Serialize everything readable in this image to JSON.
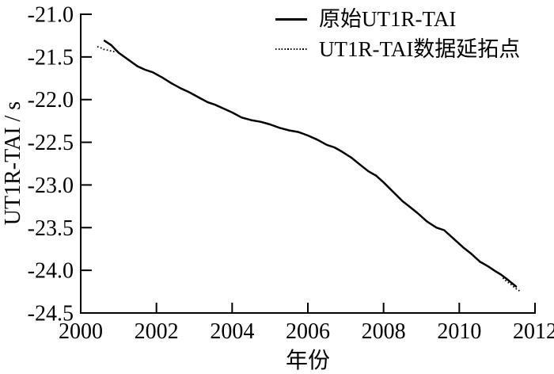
{
  "figure": {
    "background": "#ffffff",
    "line_color": "#000000",
    "text_color": "#000000"
  },
  "chart_data": {
    "type": "line",
    "title": "",
    "xlabel": "年份",
    "ylabel": "UT1R-TAI / s",
    "xlim": [
      2000,
      2012
    ],
    "ylim": [
      -24.5,
      -21.0
    ],
    "x_tick_values": [
      2000,
      2002,
      2004,
      2006,
      2008,
      2010,
      2012
    ],
    "x_tick_labels": [
      "2000",
      "2002",
      "2004",
      "2006",
      "2008",
      "2010",
      "2012"
    ],
    "y_tick_values": [
      -21.0,
      -21.5,
      -22.0,
      -22.5,
      -23.0,
      -23.5,
      -24.0,
      -24.5
    ],
    "y_tick_labels": [
      "-21.0",
      "-21.5",
      "-22.0",
      "-22.5",
      "-23.0",
      "-23.5",
      "-24.0",
      "-24.5"
    ],
    "grid": false,
    "legend_position": "top-right-inside",
    "series": [
      {
        "name": "原始UT1R-TAI",
        "line_style": "solid",
        "color": "#000000",
        "segments": [
          [
            [
              2000.63,
              -21.31
            ],
            [
              2000.8,
              -21.36
            ],
            [
              2001.0,
              -21.45
            ],
            [
              2001.25,
              -21.53
            ],
            [
              2001.5,
              -21.61
            ],
            [
              2001.7,
              -21.65
            ],
            [
              2001.9,
              -21.68
            ],
            [
              2002.15,
              -21.74
            ],
            [
              2002.4,
              -21.81
            ],
            [
              2002.65,
              -21.87
            ],
            [
              2002.85,
              -21.91
            ],
            [
              2003.1,
              -21.97
            ],
            [
              2003.35,
              -22.03
            ],
            [
              2003.55,
              -22.06
            ],
            [
              2003.8,
              -22.11
            ],
            [
              2004.0,
              -22.15
            ],
            [
              2004.25,
              -22.21
            ],
            [
              2004.5,
              -22.24
            ],
            [
              2004.75,
              -22.26
            ],
            [
              2005.0,
              -22.29
            ],
            [
              2005.25,
              -22.33
            ],
            [
              2005.5,
              -22.36
            ],
            [
              2005.75,
              -22.38
            ],
            [
              2006.0,
              -22.42
            ],
            [
              2006.25,
              -22.47
            ],
            [
              2006.5,
              -22.53
            ],
            [
              2006.7,
              -22.56
            ],
            [
              2006.9,
              -22.61
            ],
            [
              2007.15,
              -22.68
            ],
            [
              2007.4,
              -22.77
            ],
            [
              2007.6,
              -22.84
            ],
            [
              2007.8,
              -22.89
            ],
            [
              2008.0,
              -22.97
            ],
            [
              2008.25,
              -23.08
            ],
            [
              2008.5,
              -23.19
            ],
            [
              2008.7,
              -23.26
            ],
            [
              2008.9,
              -23.33
            ],
            [
              2009.15,
              -23.43
            ],
            [
              2009.4,
              -23.5
            ],
            [
              2009.6,
              -23.53
            ],
            [
              2009.85,
              -23.63
            ],
            [
              2010.1,
              -23.73
            ],
            [
              2010.3,
              -23.8
            ],
            [
              2010.55,
              -23.9
            ],
            [
              2010.75,
              -23.95
            ],
            [
              2010.95,
              -24.01
            ],
            [
              2011.1,
              -24.05
            ],
            [
              2011.25,
              -24.1
            ],
            [
              2011.5,
              -24.19
            ]
          ]
        ]
      },
      {
        "name": "UT1R-TAI数据延拓点",
        "line_style": "dotted",
        "color": "#000000",
        "segments": [
          [
            [
              2000.44,
              -21.38
            ],
            [
              2000.52,
              -21.39
            ],
            [
              2000.6,
              -21.41
            ],
            [
              2000.7,
              -21.42
            ],
            [
              2000.8,
              -21.43
            ],
            [
              2000.9,
              -21.44
            ]
          ],
          [
            [
              2011.15,
              -24.09
            ],
            [
              2011.25,
              -24.13
            ],
            [
              2011.35,
              -24.16
            ],
            [
              2011.45,
              -24.2
            ],
            [
              2011.55,
              -24.23
            ],
            [
              2011.62,
              -24.25
            ]
          ]
        ]
      }
    ]
  }
}
